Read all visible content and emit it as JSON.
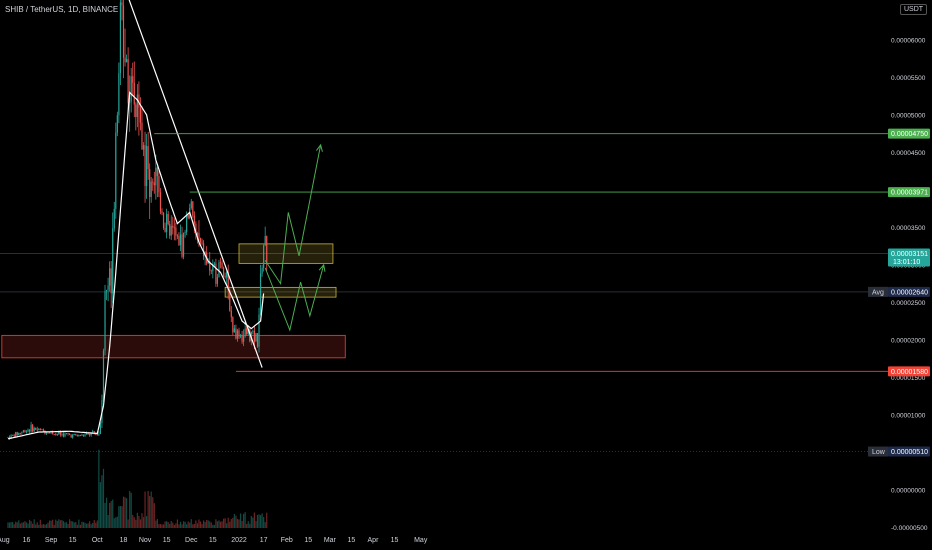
{
  "header": {
    "symbol_title": "SHIB / TetherUS, 1D, BINANCE",
    "currency_badge": "USDT"
  },
  "colors": {
    "up": "#26a69a",
    "down": "#ef5350",
    "ma": "#ffffff",
    "trendline": "#ffffff",
    "target_line": "#4caf50",
    "forecast": "#4caf50",
    "support_zone": "#f44336",
    "consolidation_zone": "#c9b43a",
    "current_price_tag": "#26a69a",
    "avg_tag": "#1e2a4a",
    "low_tag": "#1e2a4a",
    "stop_tag": "#f44336",
    "target_tag": "#4caf50"
  },
  "chart_data": {
    "type": "candlestick",
    "title": "SHIB / TetherUS, 1D, BINANCE",
    "x_ticks": [
      "Aug",
      "16",
      "Sep",
      "15",
      "Oct",
      "18",
      "Nov",
      "15",
      "Dec",
      "15",
      "2022",
      "17",
      "Feb",
      "15",
      "Mar",
      "15",
      "Apr",
      "15",
      "May"
    ],
    "y_ticks": [
      "0.00006000",
      "0.00005500",
      "0.00005000",
      "0.00004500",
      "0.00004000",
      "0.00003500",
      "0.00003000",
      "0.00002500",
      "0.00002000",
      "0.00001500",
      "0.00001000",
      "0.00000500",
      "0.00000000",
      "-0.00000500"
    ],
    "y_axis_values": [
      6e-05,
      5.5e-05,
      5e-05,
      4.5e-05,
      4e-05,
      3.5e-05,
      3e-05,
      2.5e-05,
      2e-05,
      1.5e-05,
      1e-05,
      5e-06,
      0.0,
      -5e-06
    ],
    "ylim": [
      -5.5e-06,
      6.6e-05
    ],
    "price_tags": [
      {
        "name": "target-2",
        "label": "0.00004750",
        "value": 4.75e-05,
        "style": "target"
      },
      {
        "name": "target-1",
        "label": "0.00003971",
        "value": 3.971e-05,
        "style": "target"
      },
      {
        "name": "current",
        "label": "0.00003151",
        "sublabel": "13:01:10",
        "value": 3.151e-05,
        "style": "current"
      },
      {
        "name": "avg",
        "prefix": "Avg",
        "label": "0.00002640",
        "value": 2.64e-05,
        "style": "avg"
      },
      {
        "name": "stop",
        "label": "0.00001580",
        "value": 1.58e-05,
        "style": "stop"
      },
      {
        "name": "low",
        "prefix": "Low",
        "label": "0.00000510",
        "value": 5.1e-06,
        "style": "low"
      }
    ],
    "zones": [
      {
        "name": "support-zone",
        "from_day": -4,
        "to_day": 219,
        "low": 1.76e-05,
        "high": 2.06e-05,
        "color": "support_zone"
      },
      {
        "name": "upper-resistance-zone",
        "from_day": 150,
        "to_day": 211,
        "low": 3.02e-05,
        "high": 3.28e-05,
        "color": "consolidation_zone"
      },
      {
        "name": "mid-resistance-zone",
        "from_day": 141,
        "to_day": 213,
        "low": 2.57e-05,
        "high": 2.7e-05,
        "color": "consolidation_zone"
      }
    ],
    "horizontal_lines": [
      {
        "name": "target-2-line",
        "from_day": 95,
        "value": 4.75e-05,
        "color": "target_line"
      },
      {
        "name": "target-1-line",
        "from_day": 118,
        "value": 3.971e-05,
        "color": "target_line"
      },
      {
        "name": "stop-line",
        "from_day": 148,
        "value": 1.58e-05,
        "color": "support_zone"
      }
    ],
    "trendline": {
      "from": [
        77,
        6.63e-05
      ],
      "to": [
        165,
        1.63e-05
      ]
    },
    "forecast_paths": [
      {
        "name": "forecast-path-upper",
        "points": [
          [
            167,
            3.06e-05
          ],
          [
            177,
            2.75e-05
          ],
          [
            182,
            3.7e-05
          ],
          [
            189,
            3.12e-05
          ],
          [
            203,
            4.6e-05
          ]
        ]
      },
      {
        "name": "forecast-path-lower",
        "points": [
          [
            167,
            2.96e-05
          ],
          [
            183,
            2.13e-05
          ],
          [
            190,
            2.77e-05
          ],
          [
            196,
            2.32e-05
          ],
          [
            205,
            3e-05
          ]
        ]
      }
    ],
    "candle_keyframes": {
      "description": "daily close, days since Aug 1 2021",
      "days": [
        0,
        15,
        31,
        45,
        59,
        61,
        63,
        65,
        67,
        69,
        72,
        75,
        77,
        80,
        84,
        88,
        92,
        97,
        102,
        108,
        113,
        118,
        122,
        126,
        130,
        134,
        138,
        142,
        146,
        149,
        152,
        157,
        162,
        164,
        166,
        168
      ],
      "closes": [
        7e-06,
        8.2e-06,
        7.5e-06,
        7.2e-06,
        7.5e-06,
        1.1e-05,
        2.62e-05,
        2.75e-05,
        3e-05,
        4.2e-05,
        5.9e-05,
        6.4e-05,
        5.8e-05,
        5e-05,
        5.1e-05,
        4.5e-05,
        4.2e-05,
        4.1e-05,
        3.5e-05,
        3.4e-05,
        3.25e-05,
        3.8e-05,
        3.4e-05,
        3.2e-05,
        3e-05,
        2.85e-05,
        3.1e-05,
        2.75e-05,
        2.15e-05,
        2.1e-05,
        2.05e-05,
        2.1e-05,
        2e-05,
        2.75e-05,
        3.3e-05,
        3.15e-05
      ]
    },
    "moving_average_keyframes": {
      "days": [
        0,
        20,
        40,
        58,
        62,
        66,
        70,
        74,
        79,
        84,
        90,
        96,
        104,
        110,
        118,
        124,
        130,
        138,
        146,
        152,
        158,
        164,
        166
      ],
      "values": [
        6.8e-06,
        7.7e-06,
        7.8e-06,
        7.5e-06,
        1.12e-05,
        1.9e-05,
        2.9e-05,
        4e-05,
        5.3e-05,
        5.2e-05,
        5e-05,
        4.4e-05,
        3.9e-05,
        3.55e-05,
        3.7e-05,
        3.3e-05,
        3.05e-05,
        2.9e-05,
        2.55e-05,
        2.25e-05,
        2.15e-05,
        2.25e-05,
        2.62e-05
      ]
    }
  }
}
